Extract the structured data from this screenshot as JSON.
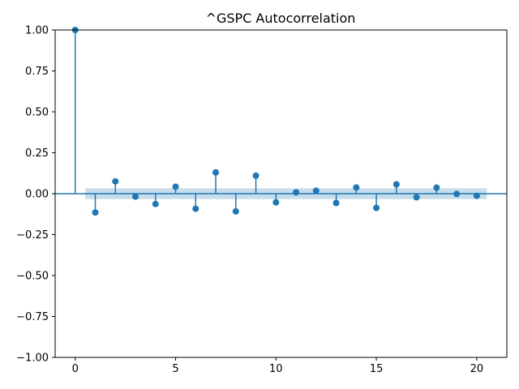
{
  "chart_data": {
    "type": "stem",
    "title": "^GSPC Autocorrelation",
    "xlabel": "",
    "ylabel": "",
    "xlim": [
      -1.0,
      21.5
    ],
    "ylim": [
      -1.0,
      1.0
    ],
    "x_ticks": [
      0,
      5,
      10,
      15,
      20
    ],
    "x_tick_labels": [
      "0",
      "5",
      "10",
      "15",
      "20"
    ],
    "y_ticks": [
      -1.0,
      -0.75,
      -0.5,
      -0.25,
      0.0,
      0.25,
      0.5,
      0.75,
      1.0
    ],
    "y_tick_labels": [
      "−1.00",
      "−0.75",
      "−0.50",
      "−0.25",
      "0.00",
      "0.25",
      "0.50",
      "0.75",
      "1.00"
    ],
    "lags": [
      0,
      1,
      2,
      3,
      4,
      5,
      6,
      7,
      8,
      9,
      10,
      11,
      12,
      13,
      14,
      15,
      16,
      17,
      18,
      19,
      20
    ],
    "values": [
      1.0,
      -0.115,
      0.075,
      -0.018,
      -0.063,
      0.043,
      -0.092,
      0.13,
      -0.108,
      0.11,
      -0.053,
      0.008,
      0.018,
      -0.057,
      0.038,
      -0.087,
      0.057,
      -0.022,
      0.037,
      -0.002,
      -0.013
    ],
    "confidence_band": {
      "x_range": [
        0.5,
        20.5
      ],
      "lower": -0.033,
      "upper": 0.033
    },
    "grid": false,
    "colors": {
      "stem": "#1f77b4",
      "marker": "#1f77b4",
      "band": "#1f77b4",
      "zero_line": "#1f77b4"
    }
  }
}
